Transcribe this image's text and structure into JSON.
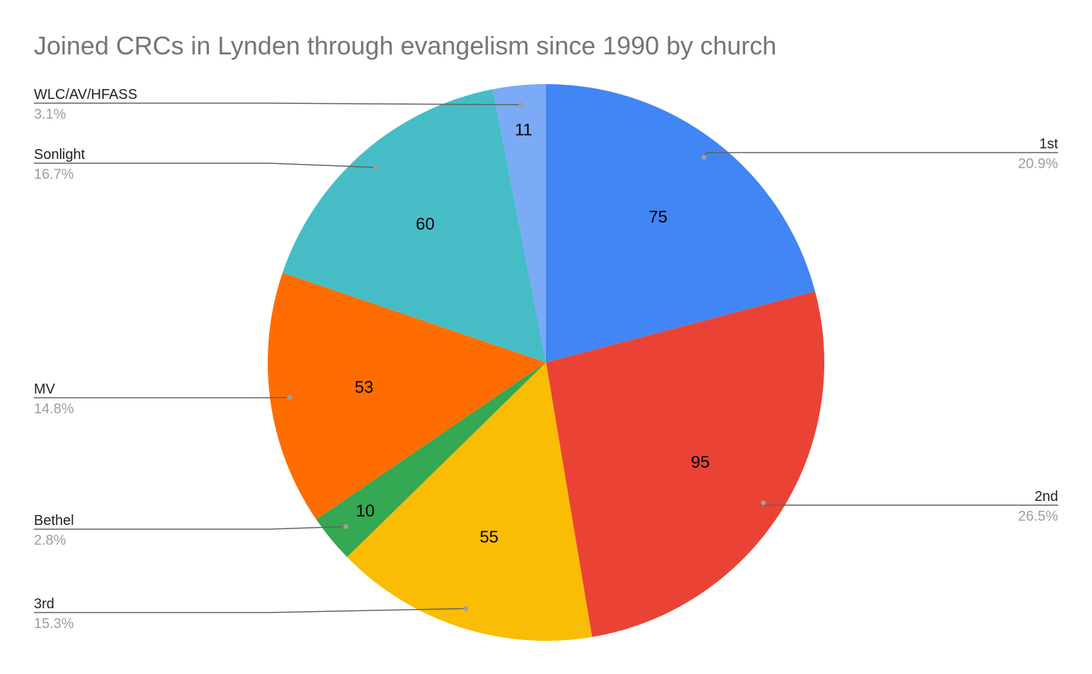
{
  "chart_data": {
    "type": "pie",
    "title": "Joined CRCs in Lynden through evangelism since 1990 by church",
    "slices": [
      {
        "label": "1st",
        "value": 75,
        "percent": "20.9%",
        "color": "#4285F4"
      },
      {
        "label": "2nd",
        "value": 95,
        "percent": "26.5%",
        "color": "#EA4335"
      },
      {
        "label": "3rd",
        "value": 55,
        "percent": "15.3%",
        "color": "#FBBC04"
      },
      {
        "label": "Bethel",
        "value": 10,
        "percent": "2.8%",
        "color": "#34A853"
      },
      {
        "label": "MV",
        "value": 53,
        "percent": "14.8%",
        "color": "#FF6D01"
      },
      {
        "label": "Sonlight",
        "value": 60,
        "percent": "16.7%",
        "color": "#46BDC6"
      },
      {
        "label": "WLC/AV/HFASS",
        "value": 11,
        "percent": "3.1%",
        "color": "#7BAAF7"
      }
    ],
    "legend": "callout labels"
  }
}
